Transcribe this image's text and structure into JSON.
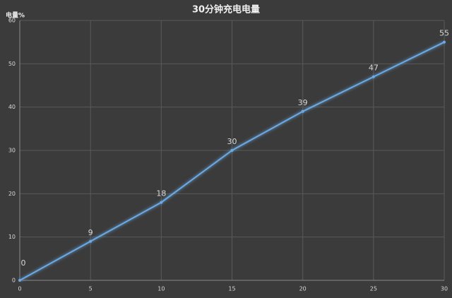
{
  "chart_data": {
    "type": "line",
    "title": "30分钟充电电量",
    "y_label": "电量%",
    "x": [
      0,
      5,
      10,
      15,
      20,
      25,
      30
    ],
    "series": [
      {
        "values": [
          0,
          9,
          18,
          30,
          39,
          47,
          55
        ],
        "color": "#6aaae6"
      }
    ],
    "xlim": [
      0,
      30
    ],
    "xticks": [
      0,
      5,
      10,
      15,
      20,
      25,
      30
    ],
    "ylim": [
      0,
      60
    ],
    "yticks": [
      0,
      10,
      20,
      30,
      40,
      50,
      60
    ],
    "grid": true
  }
}
